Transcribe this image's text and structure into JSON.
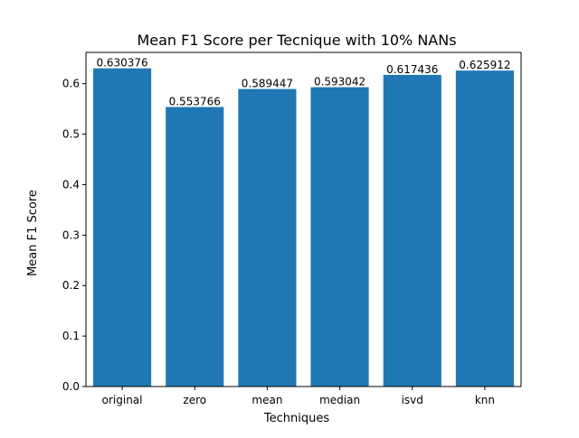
{
  "chart_data": {
    "type": "bar",
    "title": "Mean F1 Score per Tecnique with 10% NANs",
    "xlabel": "Techniques",
    "ylabel": "Mean F1 Score",
    "categories": [
      "original",
      "zero",
      "mean",
      "median",
      "isvd",
      "knn"
    ],
    "values": [
      0.630376,
      0.553766,
      0.589447,
      0.593042,
      0.617436,
      0.625912
    ],
    "data_labels": [
      "0.630376",
      "0.553766",
      "0.589447",
      "0.593042",
      "0.617436",
      "0.625912"
    ],
    "yticks": [
      0.0,
      0.1,
      0.2,
      0.3,
      0.4,
      0.5,
      0.6
    ],
    "ytick_labels": [
      "0.0",
      "0.1",
      "0.2",
      "0.3",
      "0.4",
      "0.5",
      "0.6"
    ],
    "ylim": [
      0,
      0.662
    ],
    "grid": false,
    "legend": "none",
    "bar_color": "#1f77b4"
  }
}
